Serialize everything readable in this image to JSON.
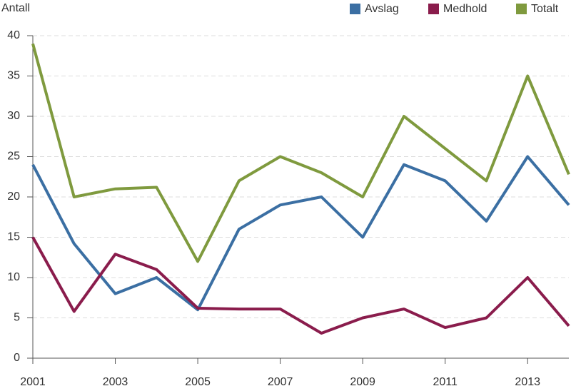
{
  "chart_data": {
    "type": "line",
    "y_label": "Antall",
    "x": [
      2001,
      2002,
      2003,
      2004,
      2005,
      2006,
      2007,
      2008,
      2009,
      2010,
      2011,
      2012,
      2013,
      2014
    ],
    "series": [
      {
        "name": "Avslag",
        "color": "#3b6fa3",
        "values": [
          24,
          14.2,
          8,
          10,
          6,
          16,
          19,
          20,
          15,
          24,
          22,
          17,
          25,
          19
        ]
      },
      {
        "name": "Medhold",
        "color": "#8a1c4c",
        "values": [
          15,
          5.8,
          12.9,
          11,
          6.2,
          6.1,
          6.1,
          3.1,
          5,
          6.1,
          3.8,
          5,
          10,
          4
        ]
      },
      {
        "name": "Totalt",
        "color": "#7f9a3e",
        "values": [
          39,
          20,
          21,
          21.2,
          12,
          22,
          25,
          23,
          20,
          30,
          26,
          22,
          35,
          22.8
        ]
      }
    ],
    "xlim": [
      2001,
      2014
    ],
    "xticks": [
      2001,
      2003,
      2005,
      2007,
      2009,
      2011,
      2013
    ],
    "ylim": [
      0,
      40
    ],
    "yticks": [
      0,
      5,
      10,
      15,
      20,
      25,
      30,
      35,
      40
    ],
    "grid": true,
    "legend": "top-right"
  }
}
